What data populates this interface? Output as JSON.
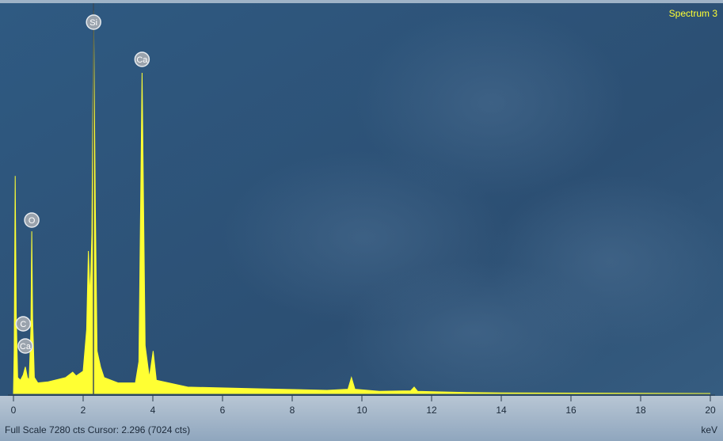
{
  "chart_data": {
    "type": "area",
    "title": "Spectrum 3",
    "status": "Full Scale 7280 cts Cursor: 2.296  (7024 cts)",
    "x_label": "keV",
    "xlim": [
      0,
      20
    ],
    "xticks": [
      0,
      2,
      4,
      6,
      8,
      10,
      12,
      14,
      16,
      18,
      20
    ],
    "ylim": [
      0,
      7280
    ],
    "cursor": 2.296,
    "color": "#ffff33",
    "annotations": [
      {
        "text": "Si",
        "x": 2.3
      },
      {
        "text": "Ca",
        "x": 3.69
      },
      {
        "text": "O",
        "x": 0.525
      },
      {
        "text": "C",
        "x": 0.28
      },
      {
        "text": "Ca",
        "x": 0.34
      }
    ],
    "x": [
      0,
      0.02,
      0.05,
      0.08,
      0.12,
      0.2,
      0.28,
      0.34,
      0.4,
      0.45,
      0.5,
      0.525,
      0.55,
      0.6,
      0.7,
      1.0,
      1.5,
      1.7,
      1.8,
      2.0,
      2.1,
      2.15,
      2.2,
      2.25,
      2.3,
      2.35,
      2.4,
      2.5,
      2.6,
      3.0,
      3.5,
      3.6,
      3.69,
      3.78,
      3.9,
      4.01,
      4.1,
      5,
      7,
      9,
      9.6,
      9.7,
      9.8,
      10.5,
      11.4,
      11.5,
      11.6,
      13,
      14,
      20
    ],
    "values": [
      0,
      800,
      4090,
      1500,
      300,
      250,
      350,
      500,
      300,
      250,
      1200,
      3050,
      1400,
      300,
      200,
      220,
      300,
      400,
      330,
      420,
      1200,
      2680,
      1800,
      3000,
      7200,
      3500,
      800,
      500,
      300,
      200,
      200,
      600,
      6030,
      900,
      300,
      800,
      250,
      120,
      90,
      60,
      80,
      300,
      80,
      40,
      50,
      120,
      40,
      20,
      10,
      0
    ]
  }
}
